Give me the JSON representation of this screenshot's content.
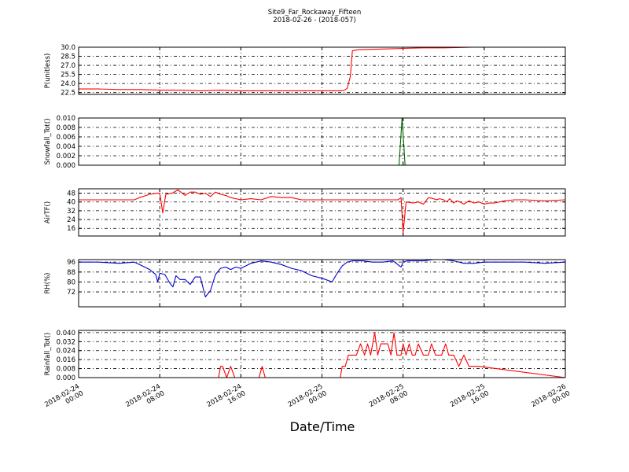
{
  "chart_data": {
    "type": "line",
    "title": "Site9_Far_Rockaway_Fifteen",
    "subtitle": "2018-02-26 - (2018-057)",
    "xlabel": "Date/Time",
    "grid": true,
    "x_ticks": [
      {
        "lines": [
          "2018-02-24",
          "00:00"
        ],
        "hours": 0
      },
      {
        "lines": [
          "2018-02-24",
          "08:00"
        ],
        "hours": 8
      },
      {
        "lines": [
          "2018-02-24",
          "16:00"
        ],
        "hours": 16
      },
      {
        "lines": [
          "2018-02-25",
          "00:00"
        ],
        "hours": 24
      },
      {
        "lines": [
          "2018-02-25",
          "08:00"
        ],
        "hours": 32
      },
      {
        "lines": [
          "2018-02-25",
          "16:00"
        ],
        "hours": 40
      },
      {
        "lines": [
          "2018-02-26",
          "00:00"
        ],
        "hours": 48
      }
    ],
    "panels": [
      {
        "ylabel": "P(unitless)",
        "color": "#ff0000",
        "ylim": [
          22.2,
          30.0
        ],
        "yticks": [
          "22.5",
          "24.0",
          "25.5",
          "27.0",
          "28.5",
          "30.0"
        ],
        "x_hours": [
          0,
          2,
          4,
          6,
          8,
          10,
          12,
          14,
          16,
          18,
          20,
          22,
          24,
          25.5,
          26.0,
          26.2,
          26.5,
          26.8,
          27.0,
          27.3,
          27.6,
          28,
          30,
          32,
          34,
          36,
          38.8
        ],
        "values": [
          23.1,
          23.1,
          23.0,
          23.0,
          22.9,
          22.9,
          22.8,
          22.9,
          22.8,
          22.8,
          22.8,
          22.8,
          22.8,
          22.8,
          22.8,
          22.9,
          23.2,
          25.2,
          29.4,
          29.5,
          29.6,
          29.6,
          29.7,
          29.8,
          29.9,
          29.9,
          30.0
        ]
      },
      {
        "ylabel": "Snowfall_Tot()",
        "color": "#006400",
        "ylim": [
          0.0,
          0.01
        ],
        "yticks": [
          "0.000",
          "0.002",
          "0.004",
          "0.006",
          "0.008",
          "0.010"
        ],
        "x_hours": [
          0,
          31.6,
          31.9,
          32.2,
          48
        ],
        "values": [
          0.0,
          0.0,
          0.01,
          0.0,
          0.0
        ]
      },
      {
        "ylabel": "AirTF()",
        "color": "#ff0000",
        "ylim": [
          9,
          52
        ],
        "yticks": [
          "16",
          "24",
          "32",
          "40",
          "48"
        ],
        "x_hours": [
          0,
          3,
          4.5,
          5.5,
          6.0,
          7.0,
          7.8,
          8.0,
          8.3,
          8.6,
          9.2,
          9.8,
          10.5,
          11.0,
          11.5,
          12.0,
          12.5,
          13.0,
          13.5,
          14.0,
          14.5,
          15.0,
          16,
          17,
          18,
          19,
          20,
          21,
          22,
          24,
          26,
          28,
          30,
          31.5,
          31.8,
          32.0,
          32.3,
          33.0,
          33.5,
          34,
          34.5,
          35.0,
          35.3,
          35.6,
          36.0,
          36.3,
          36.6,
          37.0,
          37.3,
          37.6,
          38.0,
          38.5,
          39,
          39.5,
          40,
          40.5,
          41,
          42,
          43,
          44,
          46,
          48
        ],
        "values": [
          42,
          42,
          42,
          42,
          44,
          47,
          48,
          48,
          30,
          47,
          48,
          51,
          46,
          49,
          49,
          47,
          48,
          45,
          49,
          47,
          46,
          44,
          42,
          43,
          42,
          45,
          44,
          44,
          42,
          42,
          42,
          42,
          42,
          42,
          44,
          12,
          40,
          39,
          40,
          38,
          44,
          43,
          42,
          43,
          42,
          40,
          43,
          39,
          41,
          40,
          38,
          41,
          39,
          40,
          38,
          39,
          39,
          41,
          42,
          42,
          41,
          42
        ]
      },
      {
        "ylabel": "RH(%)",
        "color": "#0000cc",
        "ylim": [
          60,
          98
        ],
        "yticks": [
          "72",
          "80",
          "88",
          "96"
        ],
        "x_hours": [
          0,
          2,
          4,
          5.5,
          6,
          7,
          7.6,
          7.8,
          8.0,
          8.5,
          9.0,
          9.3,
          9.6,
          10.0,
          10.5,
          11,
          11.5,
          12,
          12.5,
          13,
          13.5,
          14,
          14.5,
          15,
          15.5,
          16,
          17,
          18,
          19,
          20,
          21,
          22,
          23,
          24,
          25,
          25.5,
          26,
          26.5,
          27,
          28,
          29,
          30,
          31,
          31.8,
          32.0,
          32.4,
          33,
          34,
          35,
          36,
          37,
          38,
          39,
          40,
          41,
          42,
          44,
          46,
          48
        ],
        "values": [
          96,
          96,
          95,
          96,
          94,
          90,
          86,
          80,
          87,
          86,
          79,
          76,
          85,
          82,
          82,
          78,
          84,
          84,
          68,
          73,
          86,
          91,
          92,
          90,
          92,
          91,
          95,
          97,
          96,
          94,
          91,
          89,
          85,
          83,
          80,
          87,
          93,
          96,
          97,
          97,
          96,
          96,
          97,
          92,
          96,
          97,
          97,
          97,
          98,
          98,
          97,
          95,
          95,
          96,
          96,
          96,
          96,
          95,
          96
        ]
      },
      {
        "ylabel": "Rainfall_Tot()",
        "color": "#ff0000",
        "ylim": [
          0.0,
          0.042
        ],
        "yticks": [
          "0.000",
          "0.008",
          "0.016",
          "0.024",
          "0.032",
          "0.040"
        ],
        "x_hours": [
          0,
          13.8,
          14.0,
          14.2,
          14.6,
          15.0,
          15.4,
          17.8,
          18.1,
          18.4,
          25.8,
          26.0,
          26.3,
          26.6,
          27.0,
          27.4,
          27.8,
          28.2,
          28.5,
          28.8,
          29.2,
          29.5,
          29.8,
          30.2,
          30.5,
          30.8,
          31.1,
          31.4,
          31.8,
          32.0,
          32.3,
          32.6,
          32.9,
          33.2,
          33.5,
          34.0,
          34.5,
          34.8,
          35.2,
          35.5,
          35.8,
          36.2,
          36.5,
          36.8,
          37.0,
          37.5,
          38.0,
          38.5,
          39.0,
          39.5,
          48
        ],
        "values": [
          0,
          0,
          0.01,
          0.01,
          0,
          0.01,
          0,
          0,
          0.01,
          0,
          0,
          0.01,
          0.01,
          0.02,
          0.02,
          0.02,
          0.03,
          0.02,
          0.03,
          0.02,
          0.04,
          0.02,
          0.03,
          0.03,
          0.03,
          0.02,
          0.04,
          0.02,
          0.02,
          0.03,
          0.02,
          0.03,
          0.02,
          0.02,
          0.03,
          0.02,
          0.02,
          0.03,
          0.02,
          0.02,
          0.02,
          0.03,
          0.02,
          0.02,
          0.02,
          0.01,
          0.02,
          0.01,
          0.01,
          0.01,
          0
        ]
      }
    ]
  }
}
